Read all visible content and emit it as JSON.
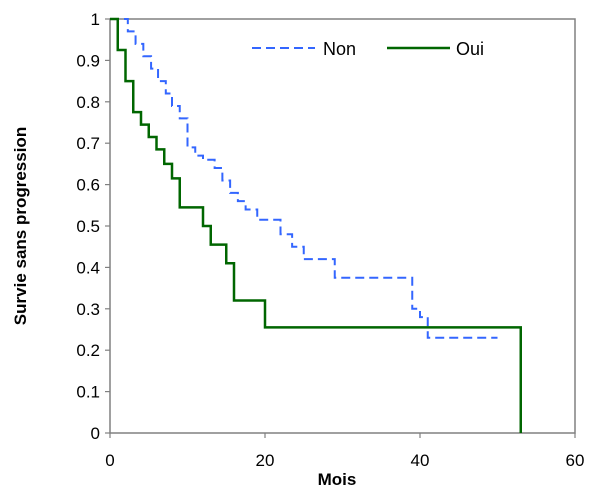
{
  "chart_data": {
    "type": "line",
    "step": true,
    "title": "",
    "xlabel": "Mois",
    "ylabel": "Survie sans progression",
    "xlim": [
      0,
      60
    ],
    "ylim": [
      0,
      1
    ],
    "x_ticks": [
      0,
      20,
      40,
      60
    ],
    "y_ticks": [
      0,
      0.1,
      0.2,
      0.3,
      0.4,
      0.5,
      0.6,
      0.7,
      0.8,
      0.9,
      1
    ],
    "grid": false,
    "legend_position": "top-right",
    "series": [
      {
        "name": "Non",
        "color": "#3366ff",
        "line_style": "dashed",
        "x": [
          0,
          2.3,
          3.3,
          4.3,
          5.3,
          6.2,
          7.2,
          8.0,
          9.0,
          10.0,
          11.0,
          12.0,
          13.5,
          14.5,
          15.5,
          16.5,
          17.5,
          19.0,
          22.0,
          23.5,
          25.0,
          29.0,
          39.0,
          40.0,
          41.0,
          50.0
        ],
        "y": [
          1.0,
          0.97,
          0.94,
          0.91,
          0.88,
          0.85,
          0.82,
          0.79,
          0.76,
          0.69,
          0.67,
          0.66,
          0.64,
          0.61,
          0.58,
          0.56,
          0.54,
          0.515,
          0.48,
          0.45,
          0.42,
          0.375,
          0.3,
          0.28,
          0.23,
          0.23
        ]
      },
      {
        "name": "Oui",
        "color": "#006600",
        "line_style": "solid",
        "x": [
          0,
          1.0,
          2.0,
          3.0,
          4.0,
          5.0,
          6.0,
          7.0,
          8.0,
          9.0,
          12.0,
          13.0,
          15.0,
          16.0,
          20.0,
          53.0
        ],
        "y": [
          1.0,
          0.925,
          0.85,
          0.775,
          0.745,
          0.715,
          0.685,
          0.65,
          0.615,
          0.545,
          0.5,
          0.455,
          0.41,
          0.32,
          0.255,
          0.0
        ]
      }
    ]
  }
}
